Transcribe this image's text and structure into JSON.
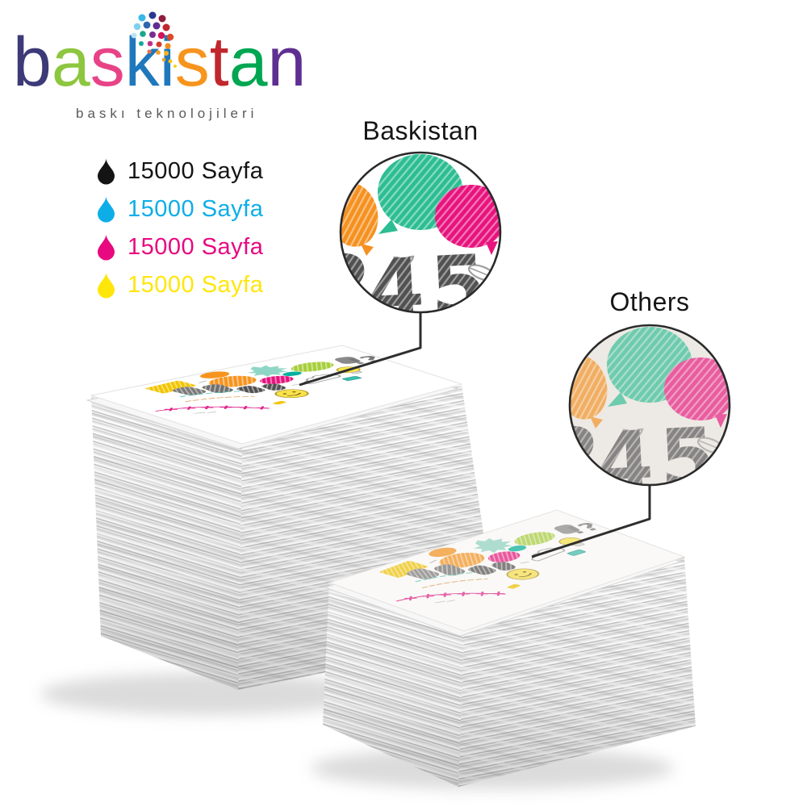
{
  "brand": {
    "logo_word": "baskistan",
    "logo_letters": [
      {
        "ch": "b",
        "color": "#3d3a78"
      },
      {
        "ch": "a",
        "color": "#8dc63f"
      },
      {
        "ch": "s",
        "color": "#e84387"
      },
      {
        "ch": "k",
        "color": "#1f78bc"
      },
      {
        "ch": "i",
        "color": "#1f78bc"
      },
      {
        "ch": "s",
        "color": "#f7941e"
      },
      {
        "ch": "t",
        "color": "#c1272d"
      },
      {
        "ch": "a",
        "color": "#00a651"
      },
      {
        "ch": "n",
        "color": "#5f2e91"
      }
    ],
    "tagline": "baskı teknolojileri",
    "tagline_color": "#58595b"
  },
  "page_yields": [
    {
      "ink": "black",
      "color": "#141414",
      "label": "15000 Sayfa"
    },
    {
      "ink": "cyan",
      "color": "#0daee8",
      "label": "15000 Sayfa"
    },
    {
      "ink": "magenta",
      "color": "#e8087f",
      "label": "15000 Sayfa"
    },
    {
      "ink": "yellow",
      "color": "#ffe60a",
      "label": "15000 Sayfa"
    }
  ],
  "comparison": {
    "baskistan_label": "Baskistan",
    "others_label": "Others",
    "magnified_digits": "45",
    "magnified_partial_digit": "2"
  },
  "sheet": {
    "marks": "!?"
  },
  "colors": {
    "balloon_teal": "#2cbd92",
    "balloon_magenta": "#e8137d",
    "balloon_orange": "#f59120",
    "sketch_gray": "#515151",
    "others_background": "#efece7",
    "connector": "#2e2e2e"
  }
}
